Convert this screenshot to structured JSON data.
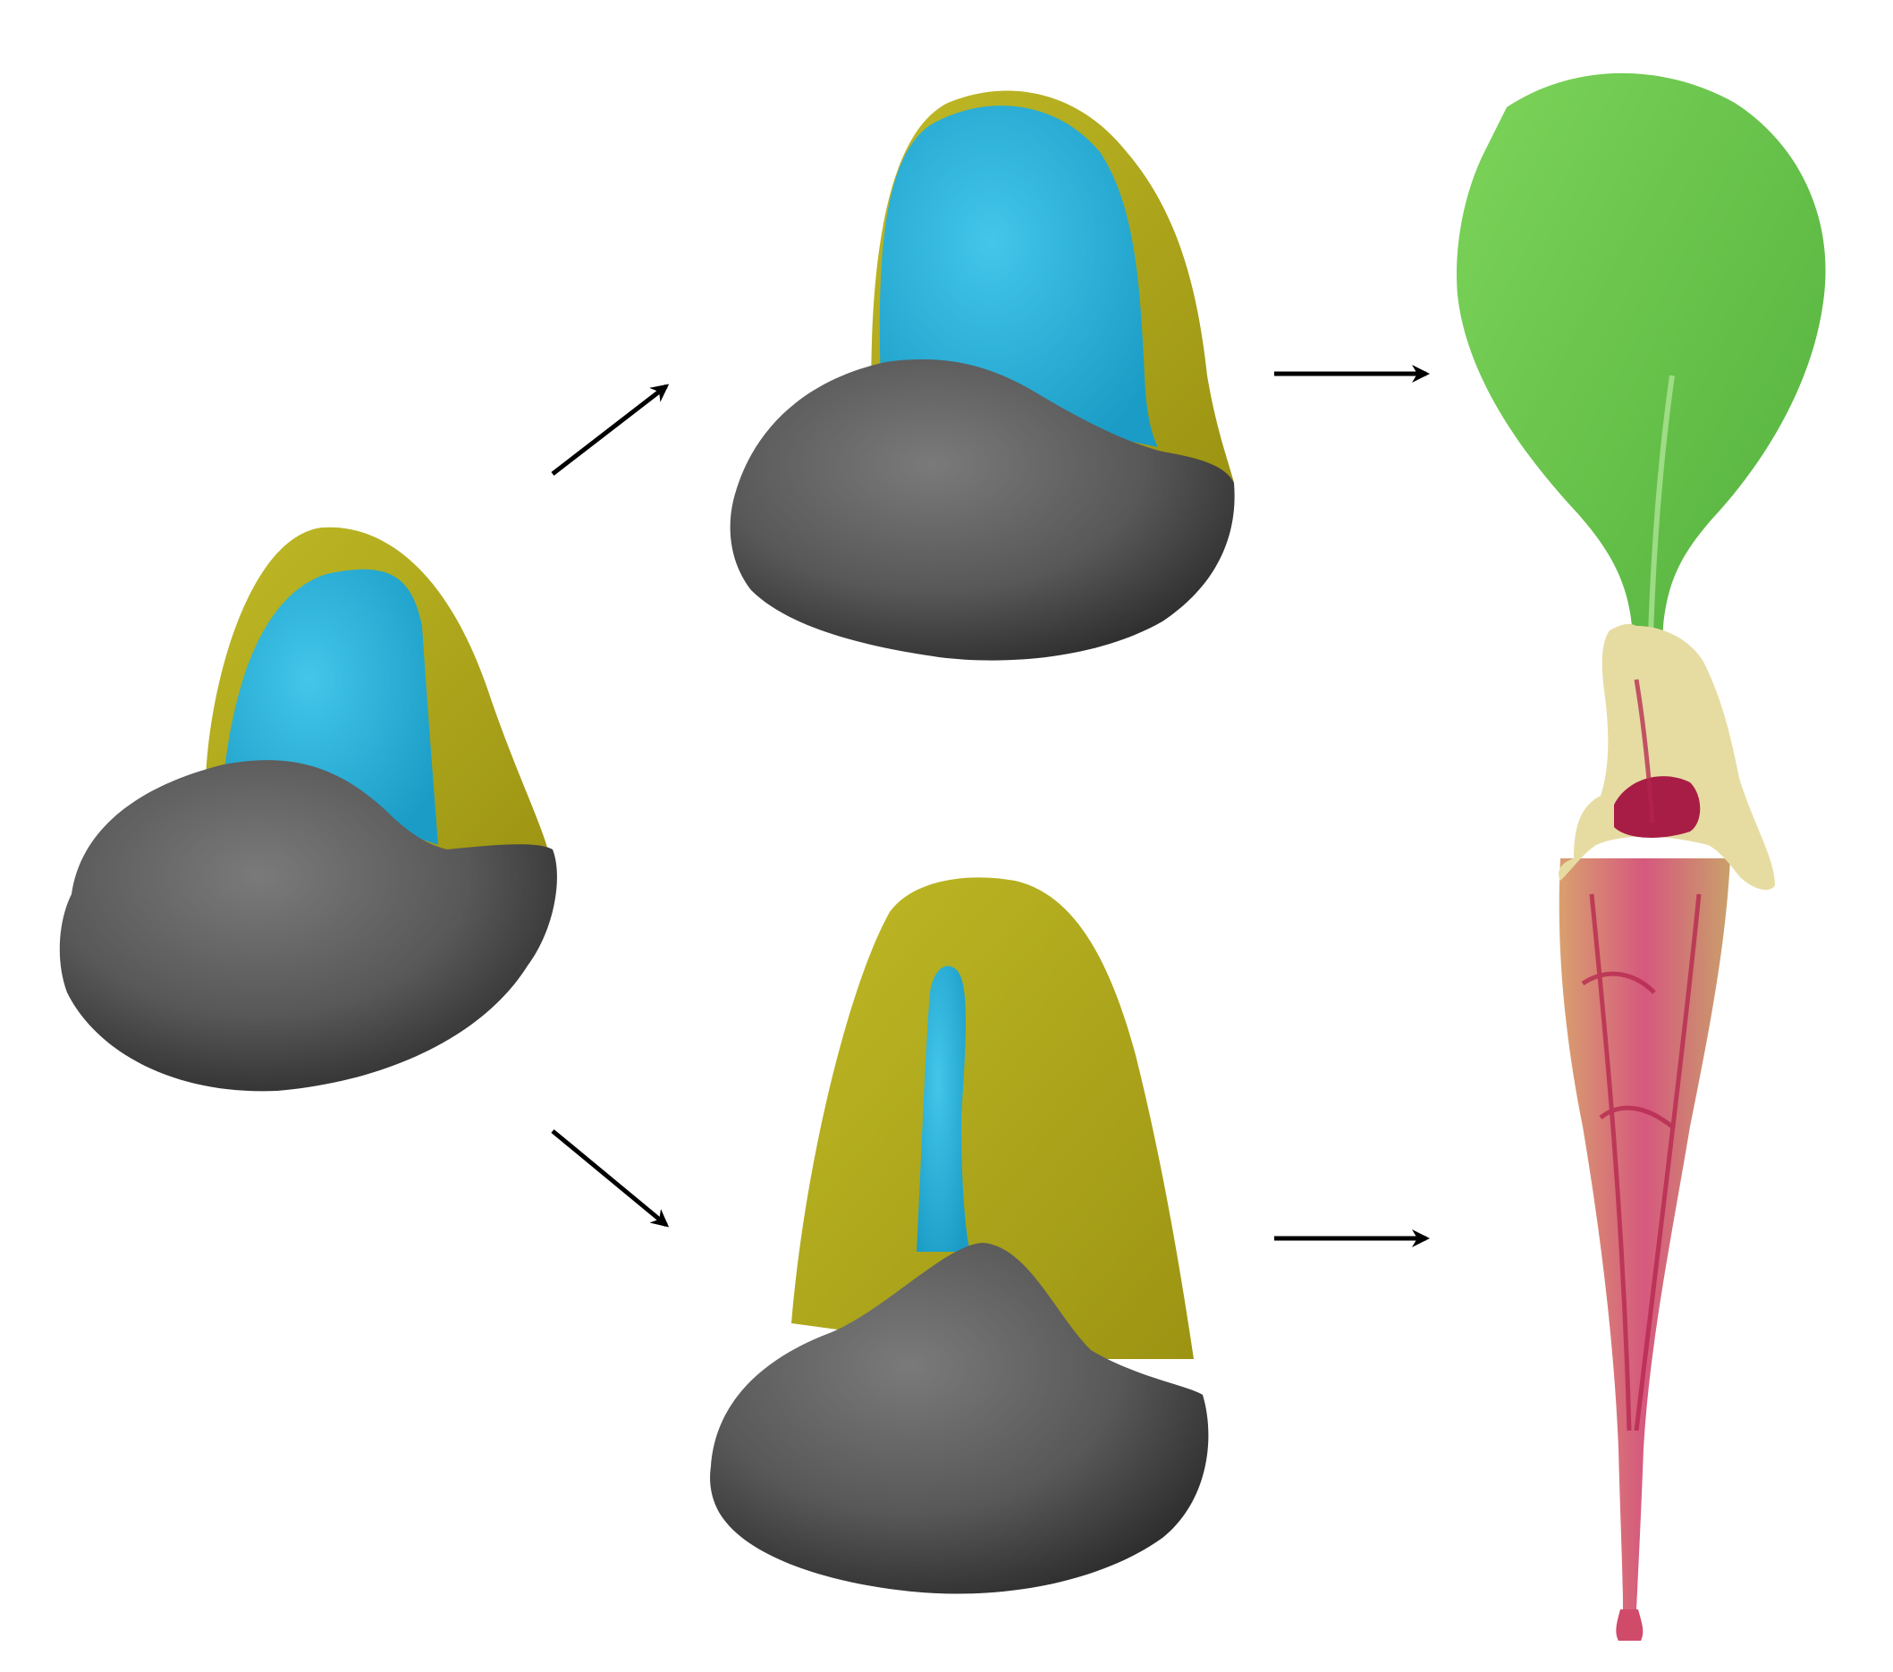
{
  "figure": {
    "background": "#ffffff",
    "colors": {
      "base_gray": "#5e5e5e",
      "base_gray_dark": "#3d3d3d",
      "adaxial_blue": "#2fb6de",
      "abaxial_olive": "#b4ad1c",
      "leaf_green": "#6cc84a",
      "pitcher_pink": "#c8396a",
      "pitcher_cream": "#e8e3a6",
      "arrow": "#000000"
    },
    "nodes": [
      {
        "id": "primordium",
        "icon": "leaf-primordium-model-icon"
      },
      {
        "id": "flat-primordium",
        "icon": "flat-leaf-primordium-model-icon"
      },
      {
        "id": "tubular-primordium",
        "icon": "tubular-leaf-primordium-model-icon"
      },
      {
        "id": "flat-leaf",
        "icon": "flat-green-leaf-photo-icon"
      },
      {
        "id": "pitcher-leaf",
        "icon": "pitcher-plant-leaf-photo-icon"
      }
    ],
    "arrows": [
      {
        "from": "primordium",
        "to": "flat-primordium"
      },
      {
        "from": "primordium",
        "to": "tubular-primordium"
      },
      {
        "from": "flat-primordium",
        "to": "flat-leaf"
      },
      {
        "from": "tubular-primordium",
        "to": "pitcher-leaf"
      }
    ]
  }
}
